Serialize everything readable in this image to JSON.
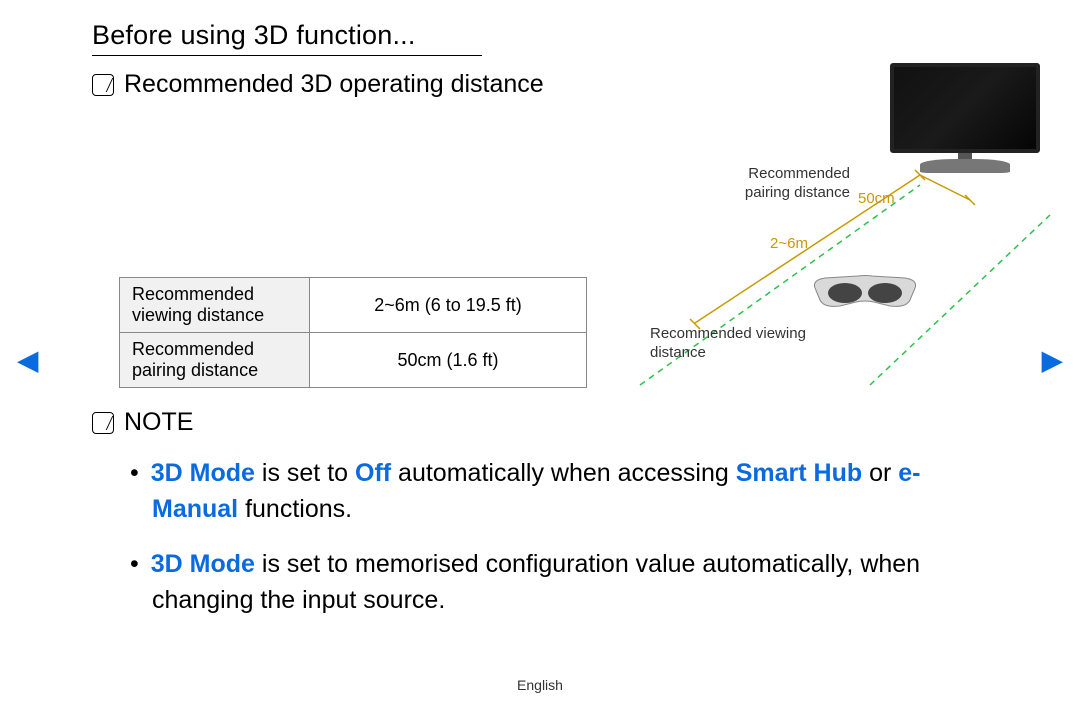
{
  "colors": {
    "highlight": "#0a6ae0",
    "accent": "#c79a00",
    "border": "#888888",
    "header_bg": "#f1f1f1",
    "text": "#000000",
    "green_dash": "#2fbf4a"
  },
  "page": {
    "title": "Before using 3D function...",
    "subtitle": "Recommended 3D operating distance",
    "note_label": "NOTE",
    "footer": "English"
  },
  "table": {
    "rows": [
      {
        "label": "Recommended viewing distance",
        "value": "2~6m (6 to 19.5 ft)"
      },
      {
        "label": "Recommended pairing distance",
        "value": "50cm (1.6 ft)"
      }
    ]
  },
  "diagram": {
    "pairing_label": "Recommended pairing distance",
    "viewing_label": "Recommended viewing distance",
    "pairing_value": "50cm",
    "viewing_value": "2~6m"
  },
  "notes": {
    "items": [
      {
        "segments": [
          {
            "t": "3D Mode",
            "hl": true
          },
          {
            "t": " is set to "
          },
          {
            "t": "Off",
            "hl": true
          },
          {
            "t": " automatically when accessing "
          },
          {
            "t": "Smart Hub",
            "hl": true
          },
          {
            "t": " or "
          },
          {
            "t": "e-Manual",
            "hl": true
          },
          {
            "t": " functions."
          }
        ]
      },
      {
        "segments": [
          {
            "t": "3D Mode",
            "hl": true
          },
          {
            "t": " is set to memorised configuration value automatically, when changing the input source."
          }
        ]
      }
    ]
  },
  "nav": {
    "prev": "◀",
    "next": "▶"
  }
}
